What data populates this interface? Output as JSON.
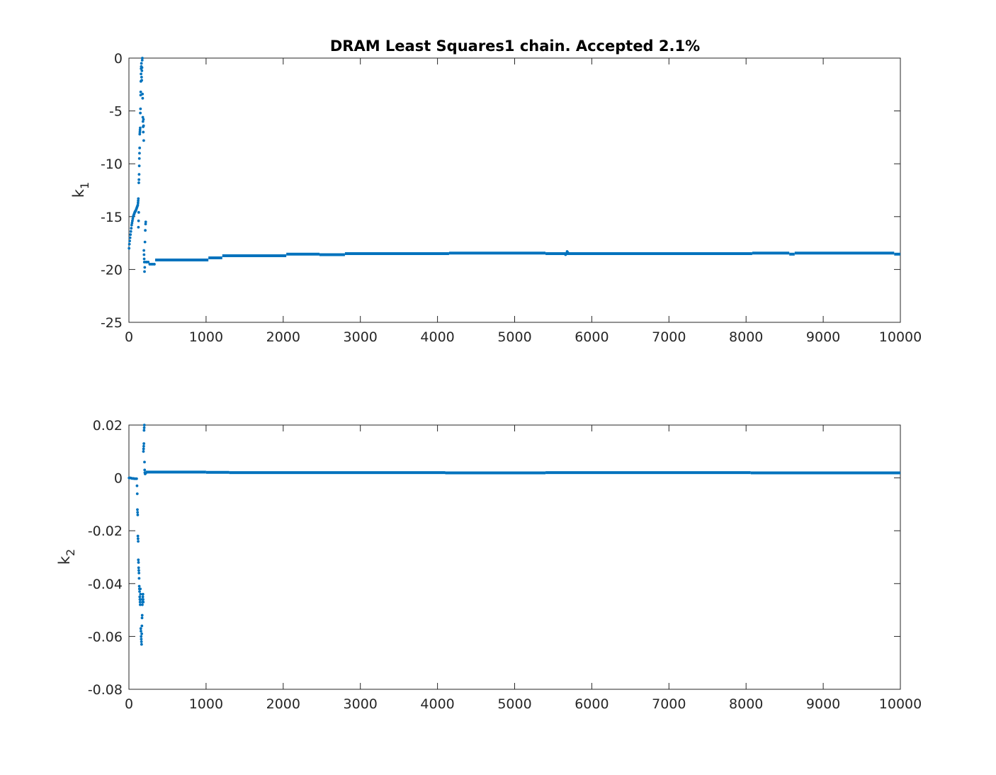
{
  "chart_data": [
    {
      "type": "scatter",
      "title": "DRAM Least Squares1 chain. Accepted 2.1%",
      "xlabel": "",
      "ylabel": "k",
      "ylabel_subscript": "1",
      "xlim": [
        0,
        10000
      ],
      "ylim": [
        -25,
        0
      ],
      "xticks": [
        0,
        1000,
        2000,
        3000,
        4000,
        5000,
        6000,
        7000,
        8000,
        9000,
        10000
      ],
      "yticks": [
        0,
        -5,
        -10,
        -15,
        -20,
        -25
      ],
      "grid": false,
      "marker_color": "#0072BD",
      "burn_in_points": [
        [
          2,
          -18.0
        ],
        [
          6,
          -17.6
        ],
        [
          10,
          -17.3
        ],
        [
          15,
          -17.0
        ],
        [
          20,
          -16.7
        ],
        [
          25,
          -16.4
        ],
        [
          30,
          -16.1
        ],
        [
          35,
          -15.8
        ],
        [
          40,
          -15.6
        ],
        [
          45,
          -15.4
        ],
        [
          50,
          -15.2
        ],
        [
          55,
          -15.0
        ],
        [
          60,
          -14.9
        ],
        [
          65,
          -14.8
        ],
        [
          70,
          -14.7
        ],
        [
          75,
          -14.6
        ],
        [
          80,
          -14.5
        ],
        [
          85,
          -14.5
        ],
        [
          90,
          -14.4
        ],
        [
          95,
          -14.3
        ],
        [
          100,
          -14.2
        ],
        [
          105,
          -14.1
        ],
        [
          110,
          -14.0
        ],
        [
          115,
          -13.9
        ],
        [
          118,
          -13.7
        ],
        [
          120,
          -13.5
        ],
        [
          122,
          -13.3
        ],
        [
          123,
          -16.0
        ],
        [
          125,
          -15.4
        ],
        [
          127,
          -14.6
        ],
        [
          128,
          -11.8
        ],
        [
          130,
          -11.5
        ],
        [
          132,
          -11.0
        ],
        [
          134,
          -10.2
        ],
        [
          135,
          -9.5
        ],
        [
          137,
          -9.0
        ],
        [
          139,
          -8.5
        ],
        [
          140,
          -7.2
        ],
        [
          142,
          -7.0
        ],
        [
          144,
          -6.8
        ],
        [
          146,
          -6.6
        ],
        [
          148,
          -5.2
        ],
        [
          150,
          -4.8
        ],
        [
          152,
          -3.5
        ],
        [
          153,
          -3.2
        ],
        [
          155,
          -2.2
        ],
        [
          157,
          -1.5
        ],
        [
          158,
          -1.0
        ],
        [
          160,
          -0.8
        ],
        [
          162,
          -0.5
        ],
        [
          164,
          -1.8
        ],
        [
          166,
          -2.1
        ],
        [
          168,
          -1.2
        ],
        [
          170,
          -0.9
        ],
        [
          172,
          -0.2
        ],
        [
          174,
          0.0
        ],
        [
          176,
          -3.4
        ],
        [
          178,
          -3.8
        ],
        [
          180,
          -5.6
        ],
        [
          182,
          -6.0
        ],
        [
          184,
          -6.5
        ],
        [
          186,
          -7.0
        ],
        [
          188,
          -5.8
        ],
        [
          190,
          -6.4
        ],
        [
          192,
          -7.8
        ],
        [
          194,
          -18.2
        ],
        [
          196,
          -18.6
        ],
        [
          198,
          -19.0
        ],
        [
          200,
          -19.3
        ],
        [
          202,
          -20.2
        ],
        [
          205,
          -19.8
        ],
        [
          208,
          -17.4
        ],
        [
          212,
          -16.3
        ],
        [
          216,
          -15.7
        ],
        [
          218,
          -15.5
        ],
        [
          222,
          -19.3
        ],
        [
          230,
          -19.3
        ],
        [
          250,
          -19.3
        ],
        [
          270,
          -19.5
        ],
        [
          290,
          -19.5
        ],
        [
          310,
          -19.5
        ],
        [
          330,
          -19.5
        ]
      ],
      "plateaus": [
        {
          "x0": 340,
          "x1": 1030,
          "y": -19.1
        },
        {
          "x0": 1030,
          "x1": 1210,
          "y": -18.9
        },
        {
          "x0": 1210,
          "x1": 2040,
          "y": -18.7
        },
        {
          "x0": 2040,
          "x1": 2470,
          "y": -18.55
        },
        {
          "x0": 2470,
          "x1": 2800,
          "y": -18.6
        },
        {
          "x0": 2800,
          "x1": 4150,
          "y": -18.5
        },
        {
          "x0": 4150,
          "x1": 5400,
          "y": -18.45
        },
        {
          "x0": 5400,
          "x1": 8080,
          "y": -18.5
        },
        {
          "x0": 8080,
          "x1": 8560,
          "y": -18.45
        },
        {
          "x0": 8560,
          "x1": 8630,
          "y": -18.55
        },
        {
          "x0": 8630,
          "x1": 9920,
          "y": -18.45
        },
        {
          "x0": 9920,
          "x1": 10000,
          "y": -18.55
        }
      ],
      "extra_points": [
        [
          5660,
          -18.6
        ],
        [
          5680,
          -18.3
        ],
        [
          5690,
          -18.4
        ]
      ]
    },
    {
      "type": "scatter",
      "title": "",
      "xlabel": "",
      "ylabel": "k",
      "ylabel_subscript": "2",
      "xlim": [
        0,
        10000
      ],
      "ylim": [
        -0.08,
        0.02
      ],
      "xticks": [
        0,
        1000,
        2000,
        3000,
        4000,
        5000,
        6000,
        7000,
        8000,
        9000,
        10000
      ],
      "yticks": [
        0.02,
        0,
        -0.02,
        -0.04,
        -0.06,
        -0.08
      ],
      "grid": false,
      "marker_color": "#0072BD",
      "burn_in_points": [
        [
          2,
          0.0
        ],
        [
          10,
          0.0
        ],
        [
          20,
          0.0
        ],
        [
          30,
          -0.0001
        ],
        [
          40,
          -0.0002
        ],
        [
          50,
          -0.0002
        ],
        [
          60,
          -0.0002
        ],
        [
          70,
          -0.0003
        ],
        [
          80,
          -0.0003
        ],
        [
          90,
          -0.0003
        ],
        [
          100,
          -0.0003
        ],
        [
          105,
          -0.003
        ],
        [
          108,
          -0.006
        ],
        [
          110,
          -0.012
        ],
        [
          112,
          -0.013
        ],
        [
          114,
          -0.014
        ],
        [
          116,
          -0.022
        ],
        [
          118,
          -0.023
        ],
        [
          120,
          -0.024
        ],
        [
          122,
          -0.031
        ],
        [
          124,
          -0.032
        ],
        [
          126,
          -0.034
        ],
        [
          128,
          -0.035
        ],
        [
          130,
          -0.036
        ],
        [
          132,
          -0.038
        ],
        [
          134,
          -0.041
        ],
        [
          136,
          -0.042
        ],
        [
          138,
          -0.043
        ],
        [
          140,
          -0.045
        ],
        [
          142,
          -0.046
        ],
        [
          144,
          -0.047
        ],
        [
          146,
          -0.048
        ],
        [
          148,
          -0.042
        ],
        [
          150,
          -0.044
        ],
        [
          152,
          -0.046
        ],
        [
          154,
          -0.057
        ],
        [
          156,
          -0.058
        ],
        [
          158,
          -0.06
        ],
        [
          160,
          -0.061
        ],
        [
          162,
          -0.062
        ],
        [
          164,
          -0.063
        ],
        [
          166,
          -0.059
        ],
        [
          168,
          -0.056
        ],
        [
          170,
          -0.053
        ],
        [
          172,
          -0.052
        ],
        [
          174,
          -0.048
        ],
        [
          176,
          -0.047
        ],
        [
          178,
          -0.046
        ],
        [
          180,
          -0.045
        ],
        [
          182,
          -0.044
        ],
        [
          184,
          -0.046
        ],
        [
          186,
          -0.047
        ],
        [
          188,
          0.01
        ],
        [
          190,
          0.011
        ],
        [
          192,
          0.012
        ],
        [
          194,
          0.013
        ],
        [
          196,
          0.018
        ],
        [
          198,
          0.019
        ],
        [
          200,
          0.02
        ],
        [
          202,
          0.006
        ],
        [
          204,
          0.003
        ],
        [
          206,
          0.002
        ],
        [
          210,
          0.0015
        ],
        [
          214,
          0.002
        ],
        [
          218,
          0.0018
        ]
      ],
      "plateaus": [
        {
          "x0": 220,
          "x1": 1000,
          "y": 0.0022
        },
        {
          "x0": 1000,
          "x1": 1300,
          "y": 0.0021
        },
        {
          "x0": 1300,
          "x1": 4100,
          "y": 0.002
        },
        {
          "x0": 4100,
          "x1": 5400,
          "y": 0.0019
        },
        {
          "x0": 5400,
          "x1": 8060,
          "y": 0.002
        },
        {
          "x0": 8060,
          "x1": 10000,
          "y": 0.0019
        }
      ],
      "extra_points": []
    }
  ]
}
